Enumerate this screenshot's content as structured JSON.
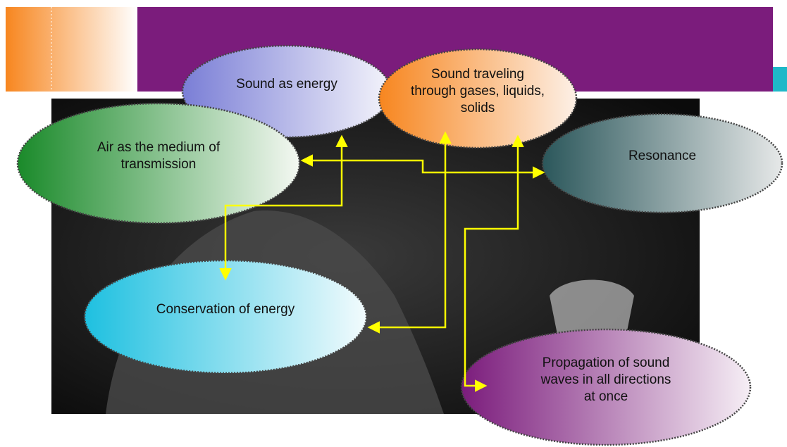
{
  "nodes": [
    {
      "label": [
        "Sound as energy"
      ]
    },
    {
      "label": [
        "Sound traveling",
        "through gases, liquids,",
        "solids"
      ]
    },
    {
      "label": [
        "Air as the medium of",
        "transmission"
      ]
    },
    {
      "label": [
        "Resonance"
      ]
    },
    {
      "label": [
        "Conservation of energy"
      ]
    },
    {
      "label": [
        "Propagation of sound",
        "waves in all directions",
        "at once"
      ]
    }
  ]
}
